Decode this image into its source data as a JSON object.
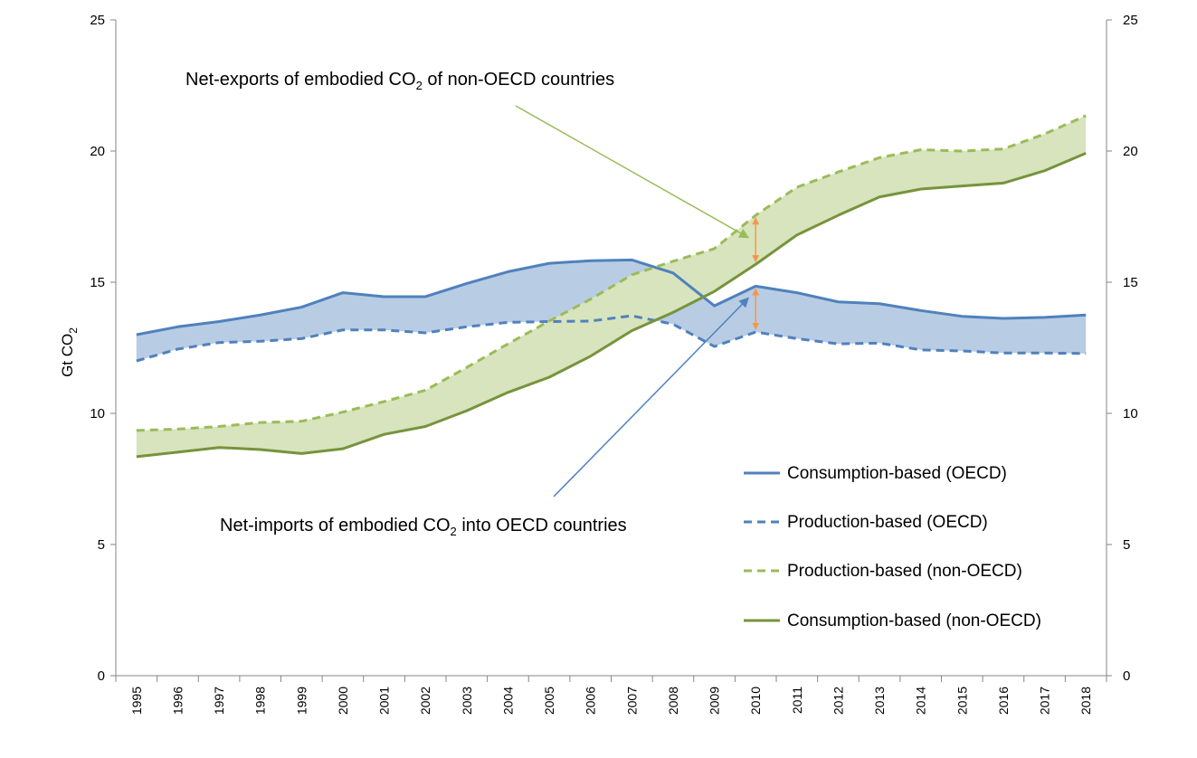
{
  "chart_data": {
    "type": "line",
    "title": "",
    "xlabel": "",
    "ylabel": "Gt CO",
    "ylabel_subscript": "2",
    "ylim": [
      0,
      25
    ],
    "yticks": [
      "0",
      "5",
      "10",
      "15",
      "20",
      "25"
    ],
    "y2ticks": [
      "0",
      "5",
      "10",
      "15",
      "20",
      "25"
    ],
    "categories": [
      "1995",
      "1996",
      "1997",
      "1998",
      "1999",
      "2000",
      "2001",
      "2002",
      "2003",
      "2004",
      "2005",
      "2006",
      "2007",
      "2008",
      "2009",
      "2010",
      "2011",
      "2012",
      "2013",
      "2014",
      "2015",
      "2016",
      "2017",
      "2018"
    ],
    "series": [
      {
        "name": "Consumption-based (OECD)",
        "style": "solid",
        "color": "#4f81bd",
        "values": [
          13.0,
          13.3,
          13.5,
          13.75,
          14.05,
          14.6,
          14.45,
          14.45,
          14.95,
          15.4,
          15.72,
          15.82,
          15.85,
          15.35,
          14.1,
          14.85,
          14.6,
          14.25,
          14.18,
          13.92,
          13.7,
          13.62,
          13.66,
          13.75
        ]
      },
      {
        "name": "Production-based (OECD)",
        "style": "dashed",
        "color": "#4f81bd",
        "values": [
          12.0,
          12.45,
          12.7,
          12.75,
          12.85,
          13.18,
          13.18,
          13.07,
          13.3,
          13.47,
          13.5,
          13.52,
          13.72,
          13.4,
          12.55,
          13.1,
          12.85,
          12.65,
          12.68,
          12.42,
          12.38,
          12.3,
          12.3,
          12.28
        ]
      },
      {
        "name": "Production-based (non-OECD)",
        "style": "dashed",
        "color": "#9bbb59",
        "values": [
          9.35,
          9.4,
          9.5,
          9.65,
          9.7,
          10.05,
          10.45,
          10.88,
          11.75,
          12.65,
          13.52,
          14.35,
          15.28,
          15.8,
          16.28,
          17.55,
          18.62,
          19.2,
          19.75,
          20.05,
          20.0,
          20.08,
          20.65,
          21.35
        ]
      },
      {
        "name": "Consumption-based (non-OECD)",
        "style": "solid",
        "color": "#77933c",
        "values": [
          8.35,
          8.52,
          8.7,
          8.62,
          8.47,
          8.65,
          9.2,
          9.5,
          10.1,
          10.8,
          11.38,
          12.18,
          13.15,
          13.85,
          14.65,
          15.68,
          16.8,
          17.55,
          18.25,
          18.55,
          18.67,
          18.78,
          19.25,
          19.92
        ]
      }
    ],
    "fill_colors": {
      "oecd_gap": "#b8cce4",
      "non_oecd_gap": "#d7e4bd"
    },
    "arrow_color": "#f79646",
    "annotations": [
      {
        "id": "net-exports",
        "text_before": "Net-exports of embodied CO",
        "subscript": "2",
        "text_after": " of non-OECD countries",
        "color": "#9bbb59"
      },
      {
        "id": "net-imports",
        "text_before": "Net-imports of embodied CO",
        "subscript": "2",
        "text_after": " into OECD countries",
        "color": "#4f81bd"
      }
    ],
    "legend_position": "lower-right",
    "grid": false
  }
}
